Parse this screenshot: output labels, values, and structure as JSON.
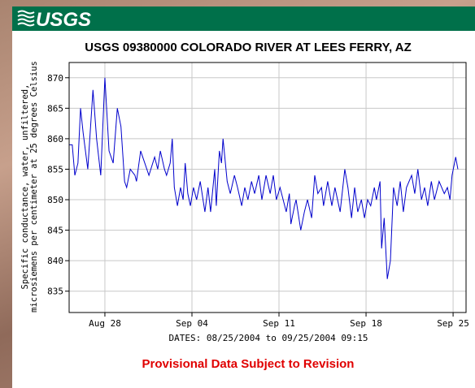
{
  "logo": "USGS",
  "chart_data": {
    "type": "line",
    "title": "USGS 09380000 COLORADO RIVER AT LEES FERRY, AZ",
    "y_label": [
      "Specific conductance, water, unfiltered,",
      "microsiemens per centimeter at 25 degrees Celsius"
    ],
    "x_label": "DATES: 08/25/2004 to 09/25/2004 09:15",
    "footnote": "Provisional Data Subject to Revision",
    "grid": true,
    "xlim": [
      "2004-08-25T03:00",
      "2004-09-26T01:00"
    ],
    "xticks": [
      {
        "value": "2004-08-28T00:00",
        "label": "Aug 28"
      },
      {
        "value": "2004-09-04T00:00",
        "label": "Sep 04"
      },
      {
        "value": "2004-09-11T00:00",
        "label": "Sep 11"
      },
      {
        "value": "2004-09-18T00:00",
        "label": "Sep 18"
      },
      {
        "value": "2004-09-25T00:00",
        "label": "Sep 25"
      }
    ],
    "ylim": [
      831.5,
      872.5
    ],
    "yticks": [
      835,
      840,
      845,
      850,
      855,
      860,
      865,
      870
    ],
    "series": [
      {
        "color": "#0000cc",
        "x": [
          "2004-08-25T03:00",
          "2004-08-25T09:00",
          "2004-08-25T14:00",
          "2004-08-25T20:00",
          "2004-08-26T01:00",
          "2004-08-26T06:00",
          "2004-08-26T15:00",
          "2004-08-27T01:00",
          "2004-08-27T08:00",
          "2004-08-27T16:00",
          "2004-08-28T00:00",
          "2004-08-28T08:00",
          "2004-08-28T16:00",
          "2004-08-29T00:00",
          "2004-08-29T07:00",
          "2004-08-29T14:00",
          "2004-08-29T18:00",
          "2004-08-30T01:00",
          "2004-08-30T10:00",
          "2004-08-30T13:00",
          "2004-08-30T21:00",
          "2004-08-31T05:00",
          "2004-08-31T13:00",
          "2004-09-01T00:00",
          "2004-09-01T06:00",
          "2004-09-01T11:00",
          "2004-09-01T19:00",
          "2004-09-01T23:00",
          "2004-09-02T06:00",
          "2004-09-02T10:00",
          "2004-09-02T14:00",
          "2004-09-02T20:00",
          "2004-09-03T02:00",
          "2004-09-03T07:00",
          "2004-09-03T11:00",
          "2004-09-03T16:00",
          "2004-09-03T21:00",
          "2004-09-04T03:00",
          "2004-09-04T09:00",
          "2004-09-04T16:00",
          "2004-09-05T01:00",
          "2004-09-05T07:00",
          "2004-09-05T12:00",
          "2004-09-05T20:00",
          "2004-09-05T23:00",
          "2004-09-06T05:00",
          "2004-09-06T09:00",
          "2004-09-06T12:00",
          "2004-09-06T20:00",
          "2004-09-07T02:00",
          "2004-09-07T10:00",
          "2004-09-07T16:00",
          "2004-09-08T00:00",
          "2004-09-08T06:00",
          "2004-09-08T12:00",
          "2004-09-08T19:00",
          "2004-09-09T01:00",
          "2004-09-09T09:00",
          "2004-09-09T15:00",
          "2004-09-09T23:00",
          "2004-09-10T07:00",
          "2004-09-10T13:00",
          "2004-09-10T19:00",
          "2004-09-11T02:00",
          "2004-09-11T14:00",
          "2004-09-11T20:00",
          "2004-09-11T23:00",
          "2004-09-12T06:00",
          "2004-09-12T09:00",
          "2004-09-12T18:00",
          "2004-09-13T01:00",
          "2004-09-13T07:00",
          "2004-09-13T15:00",
          "2004-09-13T21:00",
          "2004-09-14T03:00",
          "2004-09-14T10:00",
          "2004-09-14T14:00",
          "2004-09-14T22:00",
          "2004-09-15T06:00",
          "2004-09-15T12:00",
          "2004-09-15T22:00",
          "2004-09-16T07:00",
          "2004-09-16T13:00",
          "2004-09-16T20:00",
          "2004-09-17T02:00",
          "2004-09-17T08:00",
          "2004-09-17T15:00",
          "2004-09-17T21:00",
          "2004-09-18T03:00",
          "2004-09-18T09:00",
          "2004-09-18T16:00",
          "2004-09-18T20:00",
          "2004-09-19T03:00",
          "2004-09-19T06:00",
          "2004-09-19T11:00",
          "2004-09-19T17:00",
          "2004-09-19T23:00",
          "2004-09-20T05:00",
          "2004-09-20T12:00",
          "2004-09-20T18:00",
          "2004-09-21T00:00",
          "2004-09-21T06:00",
          "2004-09-21T16:00",
          "2004-09-21T22:00",
          "2004-09-22T04:00",
          "2004-09-22T11:00",
          "2004-09-22T17:00",
          "2004-09-22T23:00",
          "2004-09-23T06:00",
          "2004-09-23T12:00",
          "2004-09-23T21:00",
          "2004-09-24T07:00",
          "2004-09-24T13:00",
          "2004-09-24T18:00",
          "2004-09-24T22:00",
          "2004-09-25T05:00",
          "2004-09-25T09:15"
        ],
        "values": [
          859,
          859,
          854,
          856,
          865,
          861,
          855,
          868,
          860,
          854,
          870,
          858,
          856,
          865,
          862,
          853,
          852,
          855,
          854,
          853,
          858,
          856,
          854,
          857,
          855,
          858,
          855,
          854,
          856,
          860,
          852,
          849,
          852,
          850,
          856,
          851,
          849,
          852,
          850,
          853,
          848,
          852,
          848,
          855,
          849,
          858,
          856,
          860,
          853,
          851,
          854,
          852,
          849,
          852,
          850,
          853,
          851,
          854,
          850,
          854,
          851,
          854,
          850,
          852,
          848,
          851,
          846,
          849,
          850,
          845,
          848,
          850,
          847,
          854,
          851,
          852,
          849,
          853,
          849,
          852,
          848,
          855,
          852,
          847,
          852,
          848,
          850,
          847,
          850,
          849,
          852,
          850,
          853,
          842,
          847,
          837,
          840,
          852,
          849,
          853,
          848,
          852,
          854,
          851,
          855,
          850,
          852,
          849,
          853,
          850,
          853,
          851,
          852,
          850,
          854,
          857,
          855
        ]
      }
    ]
  }
}
